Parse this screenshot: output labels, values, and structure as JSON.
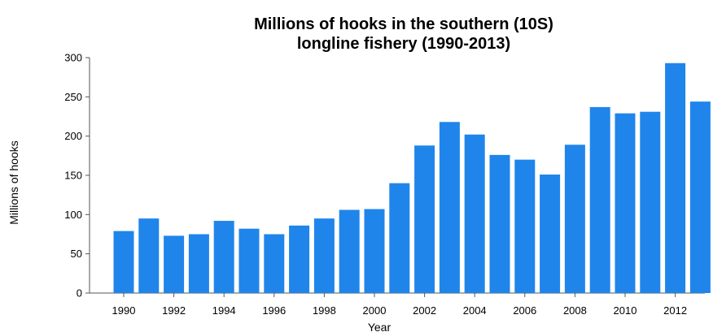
{
  "chart_data": {
    "type": "bar",
    "title_lines": [
      "Millions of hooks in the southern (10S)",
      "longline fishery (1990-2013)"
    ],
    "xlabel": "Year",
    "ylabel": "Millions of hooks",
    "categories": [
      1990,
      1991,
      1992,
      1993,
      1994,
      1995,
      1996,
      1997,
      1998,
      1999,
      2000,
      2001,
      2002,
      2003,
      2004,
      2005,
      2006,
      2007,
      2008,
      2009,
      2010,
      2011,
      2012,
      2013
    ],
    "values": [
      79,
      95,
      73,
      75,
      92,
      82,
      75,
      86,
      95,
      106,
      107,
      140,
      188,
      218,
      202,
      176,
      170,
      151,
      189,
      237,
      229,
      231,
      293,
      244
    ],
    "x_tick_labels": [
      "1990",
      "1992",
      "1994",
      "1996",
      "1998",
      "2000",
      "2002",
      "2004",
      "2006",
      "2008",
      "2010",
      "2012"
    ],
    "y_ticks": [
      "0",
      "50",
      "100",
      "150",
      "200",
      "250",
      "300"
    ],
    "ylim": [
      0,
      300
    ],
    "bar_color": "#1f85eb",
    "grid": false,
    "legend": false
  }
}
